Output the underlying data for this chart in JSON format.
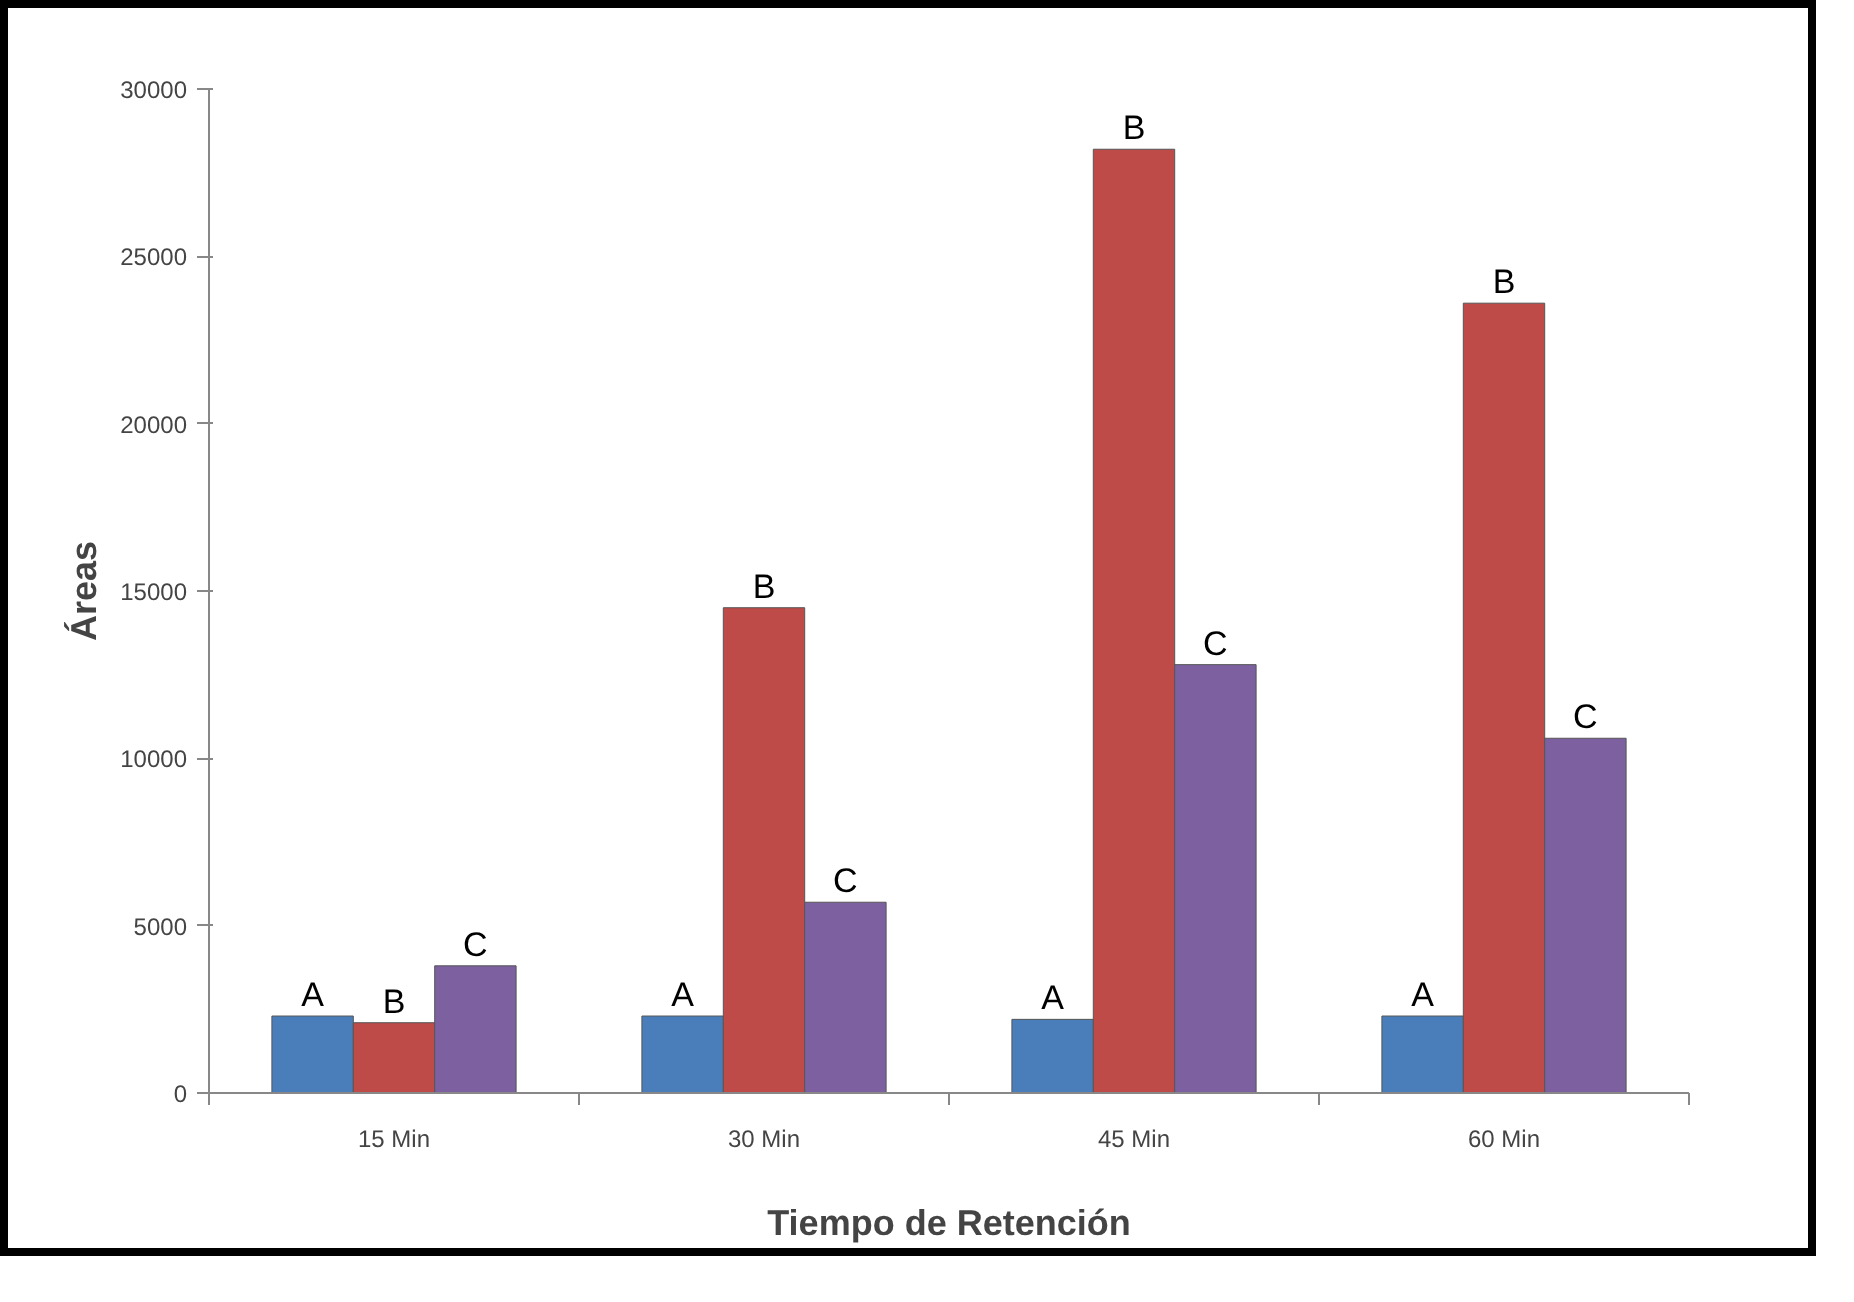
{
  "chart_data": {
    "type": "bar",
    "xlabel": "Tiempo de Retención",
    "ylabel": "Áreas",
    "categories": [
      "15 Min",
      "30 Min",
      "45 Min",
      "60 Min"
    ],
    "series": [
      {
        "color": "#4a7ebb",
        "values": [
          2300,
          2300,
          2200,
          2300
        ],
        "value_labels": [
          "A",
          "A",
          "A",
          "A"
        ]
      },
      {
        "color": "#be4b48",
        "values": [
          2100,
          14500,
          28200,
          23600
        ],
        "value_labels": [
          "B",
          "B",
          "B",
          "B"
        ]
      },
      {
        "color": "#7d60a0",
        "values": [
          3800,
          5700,
          12800,
          10600
        ],
        "value_labels": [
          "C",
          "C",
          "C",
          "C"
        ]
      }
    ],
    "ylim": [
      0,
      30000
    ],
    "yticks": [
      0,
      5000,
      10000,
      15000,
      20000,
      25000,
      30000
    ],
    "grid": false
  }
}
